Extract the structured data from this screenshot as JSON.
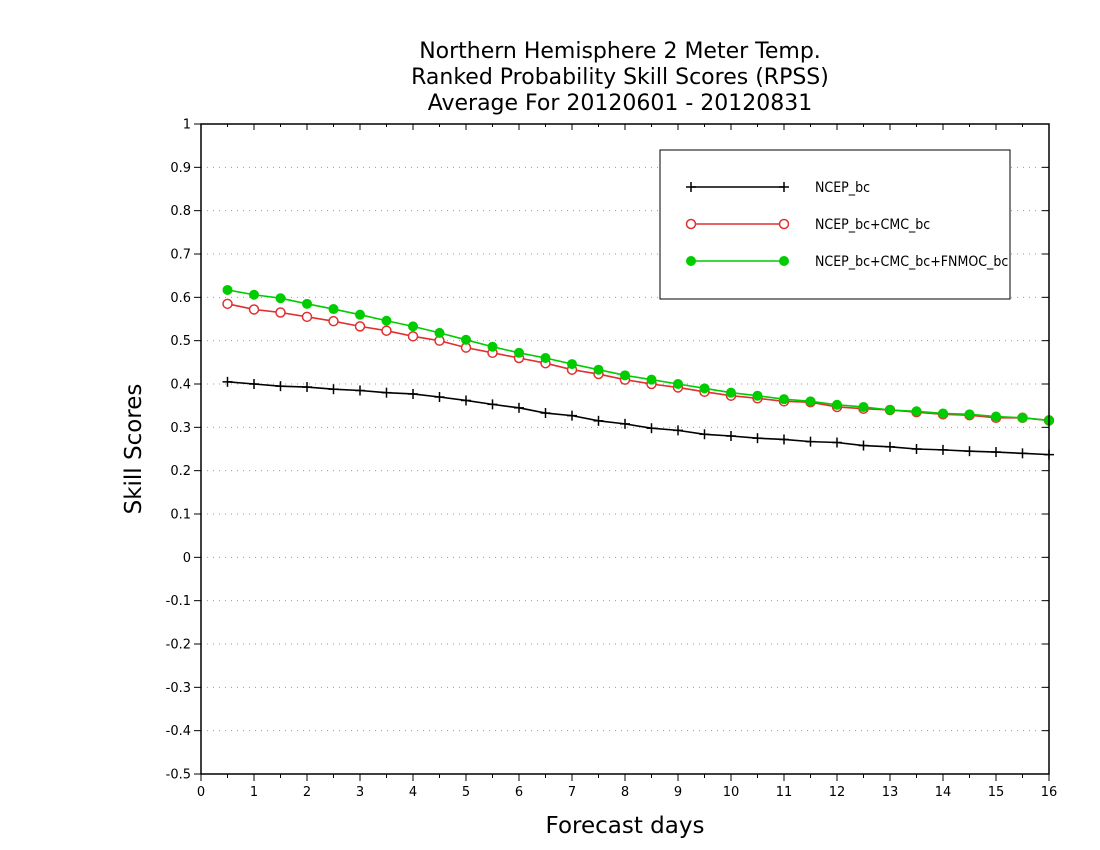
{
  "chart_data": {
    "type": "line",
    "title": [
      "Northern Hemisphere 2 Meter Temp.",
      "Ranked Probability Skill Scores (RPSS)",
      "Average For 20120601 - 20120831"
    ],
    "xlabel": "Forecast days",
    "ylabel": "Skill Scores",
    "xlim": [
      0,
      16
    ],
    "ylim": [
      -0.5,
      1
    ],
    "xticks": [
      "0",
      "1",
      "2",
      "3",
      "4",
      "5",
      "6",
      "7",
      "8",
      "9",
      "10",
      "11",
      "12",
      "13",
      "14",
      "15",
      "16"
    ],
    "yticks": [
      "-0.5",
      "-0.4",
      "-0.3",
      "-0.2",
      "-0.1",
      "0",
      "0.1",
      "0.2",
      "0.3",
      "0.4",
      "0.5",
      "0.6",
      "0.7",
      "0.8",
      "0.9",
      "1"
    ],
    "grid": "horizontal dotted",
    "legend_position": "top-right",
    "x": [
      0.5,
      1,
      1.5,
      2,
      2.5,
      3,
      3.5,
      4,
      4.5,
      5,
      5.5,
      6,
      6.5,
      7,
      7.5,
      8,
      8.5,
      9,
      9.5,
      10,
      10.5,
      11,
      11.5,
      12,
      12.5,
      13,
      13.5,
      14,
      14.5,
      15,
      15.5,
      16
    ],
    "series": [
      {
        "name": "NCEP_bc",
        "color": "#000000",
        "marker": "plus",
        "values": [
          0.405,
          0.4,
          0.395,
          0.393,
          0.388,
          0.385,
          0.38,
          0.377,
          0.37,
          0.362,
          0.353,
          0.345,
          0.333,
          0.327,
          0.315,
          0.308,
          0.298,
          0.293,
          0.284,
          0.28,
          0.275,
          0.272,
          0.267,
          0.265,
          0.258,
          0.255,
          0.25,
          0.248,
          0.245,
          0.243,
          0.24,
          0.237
        ]
      },
      {
        "name": "NCEP_bc+CMC_bc",
        "color": "#e03030",
        "marker": "open-circle",
        "values": [
          0.585,
          0.572,
          0.565,
          0.555,
          0.545,
          0.533,
          0.523,
          0.51,
          0.5,
          0.484,
          0.472,
          0.46,
          0.448,
          0.433,
          0.423,
          0.41,
          0.4,
          0.392,
          0.382,
          0.373,
          0.367,
          0.36,
          0.358,
          0.347,
          0.343,
          0.34,
          0.335,
          0.33,
          0.328,
          0.322,
          0.322,
          0.316
        ]
      },
      {
        "name": "NCEP_bc+CMC_bc+FNMOC_bc",
        "color": "#00cc00",
        "marker": "filled-circle",
        "values": [
          0.617,
          0.606,
          0.598,
          0.585,
          0.573,
          0.56,
          0.546,
          0.533,
          0.518,
          0.502,
          0.486,
          0.472,
          0.46,
          0.446,
          0.433,
          0.42,
          0.41,
          0.4,
          0.39,
          0.38,
          0.373,
          0.365,
          0.36,
          0.352,
          0.347,
          0.34,
          0.337,
          0.332,
          0.33,
          0.325,
          0.322,
          0.316
        ]
      }
    ]
  }
}
